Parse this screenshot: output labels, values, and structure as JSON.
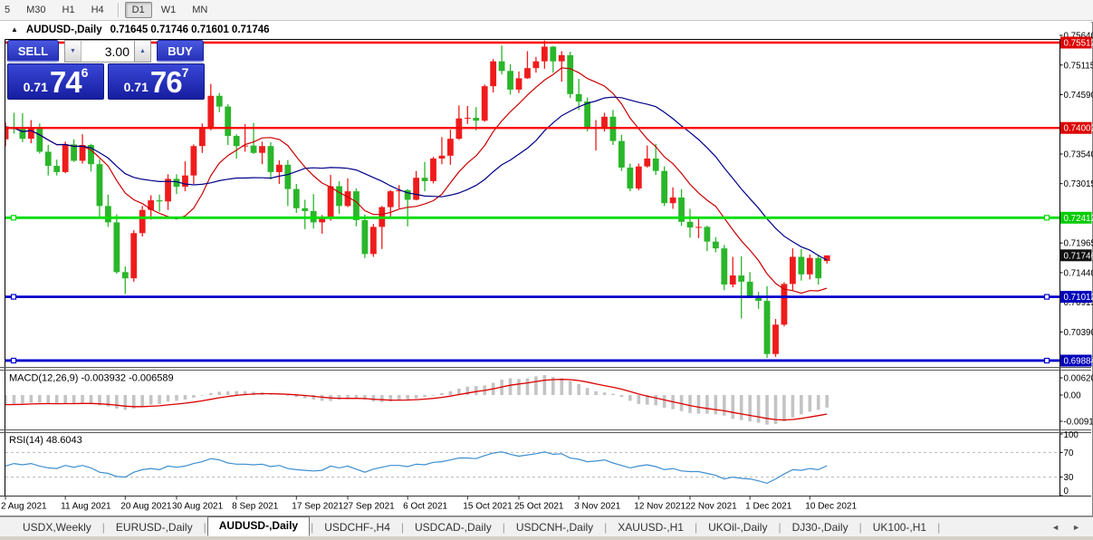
{
  "toolbar": {
    "timeframes": [
      {
        "label": "5",
        "active": false
      },
      {
        "label": "M30",
        "active": false
      },
      {
        "label": "H1",
        "active": false
      },
      {
        "label": "H4",
        "active": false
      },
      {
        "label": "D1",
        "active": true
      },
      {
        "label": "W1",
        "active": false
      },
      {
        "label": "MN",
        "active": false
      }
    ],
    "separator_after_index": 3
  },
  "window": {
    "collapse_icon": "▲",
    "symbol_title": "AUDUSD-,Daily",
    "ohlc_line": "0.71645 0.71746 0.71601 0.71746"
  },
  "trade_panel": {
    "sell_label": "SELL",
    "buy_label": "BUY",
    "volume_value": "3.00",
    "spinner_down": "▼",
    "spinner_up": "▲",
    "sell_price_prefix": "0.71",
    "sell_price_big": "74",
    "sell_price_sup": "6",
    "buy_price_prefix": "0.71",
    "buy_price_big": "76",
    "buy_price_sup": "7"
  },
  "tabbar": {
    "tabs": [
      {
        "label": "USDX,Weekly",
        "active": false
      },
      {
        "label": "EURUSD-,Daily",
        "active": false
      },
      {
        "label": "AUDUSD-,Daily",
        "active": true
      },
      {
        "label": "USDCHF-,H4",
        "active": false
      },
      {
        "label": "USDCAD-,Daily",
        "active": false
      },
      {
        "label": "USDCNH-,Daily",
        "active": false
      },
      {
        "label": "XAUUSD-,H1",
        "active": false
      },
      {
        "label": "UKOil-,Daily",
        "active": false
      },
      {
        "label": "DJ30-,Daily",
        "active": false
      },
      {
        "label": "UK100-,H1",
        "active": false
      }
    ],
    "scroll_left": "◄",
    "scroll_right": "►"
  },
  "chart_data": {
    "type": "candlestick",
    "title": "AUDUSD-,Daily",
    "up_color": "#ee1c1c",
    "down_color": "#2ab62a",
    "ma_fast": {
      "period": 10,
      "color": "#cc0000"
    },
    "ma_slow": {
      "period": 21,
      "color": "#000088"
    },
    "price_axis": {
      "grid_labels": [
        0.7564,
        0.75115,
        0.7459,
        0.7354,
        0.73015,
        0.71965,
        0.7144,
        0.70915,
        0.7039
      ],
      "badges": [
        {
          "value": 0.75512,
          "color": "#dd0000"
        },
        {
          "value": 0.74002,
          "color": "#dd0000"
        },
        {
          "value": 0.72412,
          "color": "#00cc00"
        },
        {
          "value": 0.71746,
          "color": "#111111"
        },
        {
          "value": 0.71012,
          "color": "#0000bb"
        },
        {
          "value": 0.69884,
          "color": "#0000bb"
        }
      ]
    },
    "hlines": [
      {
        "value": 0.75512,
        "color": "#ff0000",
        "width": 2.4,
        "handles": false
      },
      {
        "value": 0.74002,
        "color": "#ff0000",
        "width": 2.4,
        "handles": false
      },
      {
        "value": 0.72412,
        "color": "#00dd00",
        "width": 2.8,
        "handles": true
      },
      {
        "value": 0.71012,
        "color": "#0000cc",
        "width": 2.8,
        "handles": true
      },
      {
        "value": 0.69884,
        "color": "#0000cc",
        "width": 2.8,
        "handles": true
      }
    ],
    "x_labels": [
      {
        "label": "2 Aug 2021",
        "bar": 0
      },
      {
        "label": "11 Aug 2021",
        "bar": 7
      },
      {
        "label": "20 Aug 2021",
        "bar": 14
      },
      {
        "label": "30 Aug 2021",
        "bar": 20
      },
      {
        "label": "8 Sep 2021",
        "bar": 27
      },
      {
        "label": "17 Sep 2021",
        "bar": 34
      },
      {
        "label": "27 Sep 2021",
        "bar": 40
      },
      {
        "label": "6 Oct 2021",
        "bar": 47
      },
      {
        "label": "15 Oct 2021",
        "bar": 54
      },
      {
        "label": "25 Oct 2021",
        "bar": 60
      },
      {
        "label": "3 Nov 2021",
        "bar": 67
      },
      {
        "label": "12 Nov 2021",
        "bar": 74
      },
      {
        "label": "22 Nov 2021",
        "bar": 80
      },
      {
        "label": "1 Dec 2021",
        "bar": 87
      },
      {
        "label": "10 Dec 2021",
        "bar": 94
      }
    ],
    "candles": [
      [
        0.738,
        0.741,
        0.7368,
        0.7402
      ],
      [
        0.7402,
        0.7427,
        0.739,
        0.7398
      ],
      [
        0.7398,
        0.7426,
        0.7375,
        0.7381
      ],
      [
        0.7381,
        0.7414,
        0.7373,
        0.7401
      ],
      [
        0.7401,
        0.7408,
        0.7355,
        0.7358
      ],
      [
        0.7358,
        0.737,
        0.7316,
        0.7333
      ],
      [
        0.7333,
        0.7344,
        0.7316,
        0.7322
      ],
      [
        0.7322,
        0.7376,
        0.732,
        0.7371
      ],
      [
        0.7371,
        0.738,
        0.734,
        0.7342
      ],
      [
        0.7342,
        0.7389,
        0.7337,
        0.737
      ],
      [
        0.737,
        0.7372,
        0.7323,
        0.7336
      ],
      [
        0.7336,
        0.7345,
        0.724,
        0.7262
      ],
      [
        0.7262,
        0.7282,
        0.7225,
        0.7233
      ],
      [
        0.7233,
        0.7247,
        0.7142,
        0.7145
      ],
      [
        0.7145,
        0.7155,
        0.7106,
        0.7134
      ],
      [
        0.7134,
        0.7219,
        0.7128,
        0.7214
      ],
      [
        0.7214,
        0.7262,
        0.7208,
        0.7255
      ],
      [
        0.7255,
        0.7281,
        0.7238,
        0.7272
      ],
      [
        0.7272,
        0.7282,
        0.7252,
        0.727
      ],
      [
        0.727,
        0.7318,
        0.7255,
        0.731
      ],
      [
        0.731,
        0.7318,
        0.7283,
        0.7296
      ],
      [
        0.7296,
        0.7341,
        0.7288,
        0.7316
      ],
      [
        0.7316,
        0.7371,
        0.7301,
        0.7368
      ],
      [
        0.7368,
        0.7408,
        0.7356,
        0.7399
      ],
      [
        0.7399,
        0.7478,
        0.7396,
        0.7457
      ],
      [
        0.7457,
        0.7462,
        0.7428,
        0.7438
      ],
      [
        0.7438,
        0.7442,
        0.737,
        0.7386
      ],
      [
        0.7386,
        0.7389,
        0.7346,
        0.7368
      ],
      [
        0.7368,
        0.7407,
        0.7358,
        0.7369
      ],
      [
        0.7369,
        0.7409,
        0.7354,
        0.7356
      ],
      [
        0.7356,
        0.7376,
        0.7336,
        0.7368
      ],
      [
        0.7368,
        0.7375,
        0.7309,
        0.7322
      ],
      [
        0.7322,
        0.7343,
        0.7301,
        0.7335
      ],
      [
        0.7335,
        0.7343,
        0.7262,
        0.7292
      ],
      [
        0.7292,
        0.7301,
        0.725,
        0.7258
      ],
      [
        0.7258,
        0.7273,
        0.7221,
        0.7253
      ],
      [
        0.7253,
        0.7283,
        0.7222,
        0.7233
      ],
      [
        0.7233,
        0.7246,
        0.7213,
        0.724
      ],
      [
        0.724,
        0.7317,
        0.7236,
        0.7297
      ],
      [
        0.7297,
        0.7306,
        0.7248,
        0.7262
      ],
      [
        0.7262,
        0.7311,
        0.726,
        0.7288
      ],
      [
        0.7288,
        0.7293,
        0.7226,
        0.7237
      ],
      [
        0.7237,
        0.7247,
        0.717,
        0.7177
      ],
      [
        0.7177,
        0.723,
        0.7172,
        0.7225
      ],
      [
        0.7225,
        0.7262,
        0.7186,
        0.726
      ],
      [
        0.726,
        0.729,
        0.7242,
        0.7288
      ],
      [
        0.7288,
        0.7299,
        0.7258,
        0.729
      ],
      [
        0.729,
        0.7292,
        0.7226,
        0.7273
      ],
      [
        0.7273,
        0.7324,
        0.7272,
        0.7312
      ],
      [
        0.7312,
        0.734,
        0.7288,
        0.7306
      ],
      [
        0.7306,
        0.7349,
        0.7302,
        0.7346
      ],
      [
        0.7346,
        0.7384,
        0.7336,
        0.7351
      ],
      [
        0.7351,
        0.7397,
        0.7335,
        0.7381
      ],
      [
        0.7381,
        0.744,
        0.7379,
        0.7417
      ],
      [
        0.7417,
        0.7439,
        0.7407,
        0.7418
      ],
      [
        0.7418,
        0.7437,
        0.7396,
        0.7413
      ],
      [
        0.7413,
        0.7477,
        0.7411,
        0.7474
      ],
      [
        0.7474,
        0.7522,
        0.7463,
        0.7518
      ],
      [
        0.7518,
        0.7546,
        0.7495,
        0.7501
      ],
      [
        0.7501,
        0.7513,
        0.7459,
        0.7468
      ],
      [
        0.7468,
        0.75,
        0.7462,
        0.7488
      ],
      [
        0.7488,
        0.7536,
        0.7487,
        0.7506
      ],
      [
        0.7506,
        0.7526,
        0.7498,
        0.7518
      ],
      [
        0.7518,
        0.7555,
        0.7505,
        0.7544
      ],
      [
        0.7544,
        0.7545,
        0.7498,
        0.7518
      ],
      [
        0.7518,
        0.7536,
        0.7482,
        0.7529
      ],
      [
        0.7529,
        0.7535,
        0.7453,
        0.746
      ],
      [
        0.746,
        0.7487,
        0.7432,
        0.7447
      ],
      [
        0.7447,
        0.7454,
        0.7394,
        0.7399
      ],
      [
        0.7399,
        0.7414,
        0.736,
        0.7402
      ],
      [
        0.7402,
        0.7427,
        0.7394,
        0.742
      ],
      [
        0.742,
        0.7432,
        0.737,
        0.7377
      ],
      [
        0.7377,
        0.7388,
        0.7324,
        0.733
      ],
      [
        0.733,
        0.7337,
        0.7288,
        0.7293
      ],
      [
        0.7293,
        0.7337,
        0.729,
        0.7332
      ],
      [
        0.7332,
        0.7369,
        0.733,
        0.7346
      ],
      [
        0.7346,
        0.7372,
        0.7317,
        0.7324
      ],
      [
        0.7324,
        0.7332,
        0.7262,
        0.7267
      ],
      [
        0.7267,
        0.7295,
        0.7257,
        0.7277
      ],
      [
        0.7277,
        0.7292,
        0.7227,
        0.7234
      ],
      [
        0.7234,
        0.7257,
        0.7206,
        0.7224
      ],
      [
        0.7224,
        0.7243,
        0.7205,
        0.7225
      ],
      [
        0.7225,
        0.7227,
        0.7182,
        0.7199
      ],
      [
        0.7199,
        0.7207,
        0.718,
        0.7187
      ],
      [
        0.7187,
        0.7193,
        0.7113,
        0.7123
      ],
      [
        0.7123,
        0.7172,
        0.7118,
        0.7139
      ],
      [
        0.7139,
        0.7173,
        0.7063,
        0.7128
      ],
      [
        0.7128,
        0.7145,
        0.71,
        0.7103
      ],
      [
        0.7103,
        0.711,
        0.708,
        0.7094
      ],
      [
        0.7094,
        0.712,
        0.6993,
        0.7
      ],
      [
        0.7,
        0.7062,
        0.6995,
        0.7052
      ],
      [
        0.7052,
        0.7127,
        0.7049,
        0.7124
      ],
      [
        0.7124,
        0.7187,
        0.7113,
        0.7172
      ],
      [
        0.7172,
        0.7186,
        0.713,
        0.7141
      ],
      [
        0.7141,
        0.7176,
        0.7132,
        0.717
      ],
      [
        0.717,
        0.7176,
        0.7123,
        0.7134
      ],
      [
        0.71645,
        0.71746,
        0.71601,
        0.71746
      ]
    ],
    "macd": {
      "label": "MACD(12,26,9) -0.003932 -0.006589",
      "main_value": -0.003932,
      "signal_value": -0.006589,
      "axis_labels": [
        "0.006201",
        "0.00",
        "-0.00919"
      ],
      "hist_color": "#c4c4c4",
      "signal_color": "#dd0000",
      "signal_period": 9,
      "histogram": [
        -0.003,
        -0.0028,
        -0.0026,
        -0.0024,
        -0.0024,
        -0.0026,
        -0.0028,
        -0.0026,
        -0.0026,
        -0.0024,
        -0.0026,
        -0.0032,
        -0.0036,
        -0.0042,
        -0.0046,
        -0.0042,
        -0.0036,
        -0.003,
        -0.0028,
        -0.002,
        -0.0018,
        -0.0014,
        -0.0008,
        -0.0002,
        0.0006,
        0.001,
        0.0012,
        0.0012,
        0.0012,
        0.001,
        0.0008,
        0.0004,
        0.0,
        -0.0002,
        -0.0006,
        -0.001,
        -0.0014,
        -0.0018,
        -0.0018,
        -0.0014,
        -0.0012,
        -0.001,
        -0.0014,
        -0.002,
        -0.0022,
        -0.002,
        -0.0016,
        -0.0014,
        -0.001,
        -0.0006,
        -0.0002,
        0.0006,
        0.0012,
        0.002,
        0.0026,
        0.0028,
        0.003,
        0.0038,
        0.0048,
        0.0052,
        0.005,
        0.0052,
        0.0058,
        0.0062,
        0.0056,
        0.0052,
        0.0044,
        0.0034,
        0.0022,
        0.0012,
        0.0008,
        0.0004,
        -0.0006,
        -0.0018,
        -0.0028,
        -0.003,
        -0.0032,
        -0.004,
        -0.0044,
        -0.005,
        -0.0056,
        -0.0058,
        -0.0058,
        -0.006,
        -0.0064,
        -0.0074,
        -0.0078,
        -0.0082,
        -0.0086,
        -0.0092,
        -0.009,
        -0.0082,
        -0.007,
        -0.006,
        -0.0052,
        -0.0046,
        -0.0039
      ]
    },
    "rsi": {
      "label": "RSI(14) 48.6043",
      "value": 48.6043,
      "axis_labels": [
        100,
        70,
        30,
        0
      ],
      "levels": [
        70,
        30
      ],
      "color": "#3d8fd1",
      "values": [
        48,
        52,
        50,
        52,
        48,
        45,
        44,
        49,
        46,
        49,
        45,
        38,
        36,
        31,
        30,
        38,
        42,
        44,
        42,
        48,
        46,
        48,
        52,
        55,
        60,
        58,
        53,
        51,
        51,
        50,
        51,
        47,
        49,
        44,
        42,
        41,
        40,
        41,
        48,
        45,
        48,
        43,
        38,
        43,
        46,
        49,
        49,
        47,
        51,
        50,
        54,
        55,
        58,
        61,
        61,
        60,
        65,
        69,
        71,
        67,
        64,
        66,
        68,
        71,
        67,
        68,
        61,
        59,
        55,
        56,
        58,
        53,
        49,
        45,
        48,
        50,
        47,
        42,
        44,
        40,
        39,
        39,
        36,
        33,
        27,
        30,
        28,
        27,
        24,
        20,
        27,
        35,
        42,
        41,
        44,
        42,
        48.6
      ]
    }
  }
}
